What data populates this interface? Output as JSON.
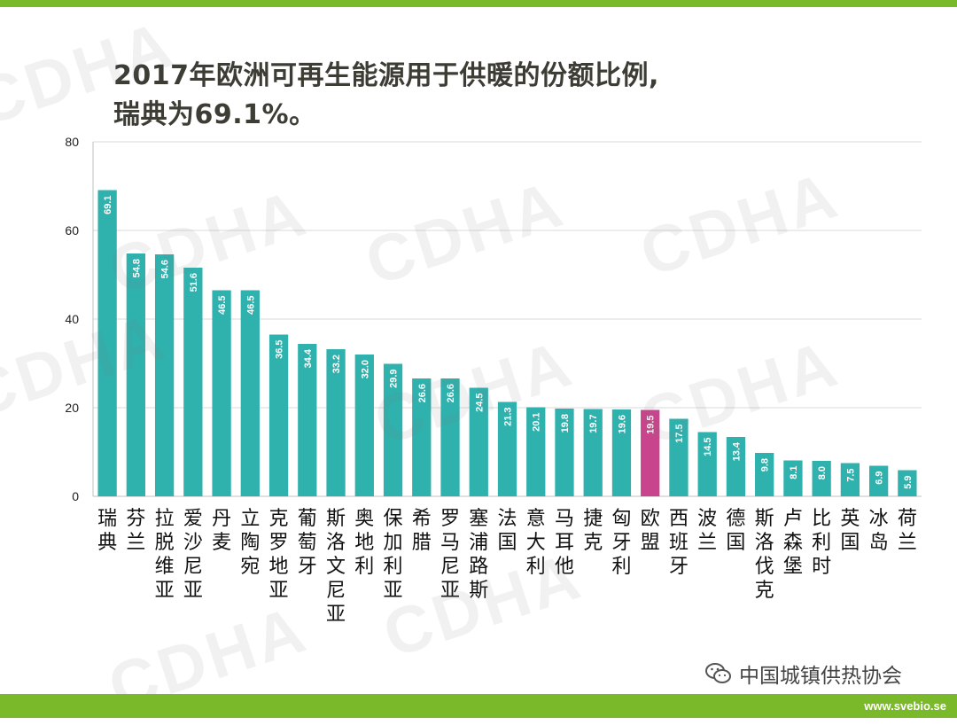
{
  "title": {
    "line1": "2017年欧洲可再生能源用于供暖的份额比例,",
    "line2": "瑞典为69.1%。"
  },
  "colors": {
    "brand_green": "#7ab929",
    "bar": "#2fb1ad",
    "highlight": "#c8448c",
    "grid": "#d9d9d9",
    "axis_text": "#222222"
  },
  "watermark": "CDHA",
  "wechat_label": "中国城镇供热协会",
  "footer_url": "www.svebio.se",
  "chart_data": {
    "type": "bar",
    "title": "2017年欧洲可再生能源用于供暖的份额比例,瑞典为69.1%。",
    "xlabel": "",
    "ylabel": "",
    "ylim": [
      0,
      80
    ],
    "yticks": [
      0,
      20,
      40,
      60,
      80
    ],
    "grid": true,
    "highlight_category": "欧盟",
    "categories": [
      "瑞典",
      "芬兰",
      "拉脱维亚",
      "爱沙尼亚",
      "丹麦",
      "立陶宛",
      "克罗地亚",
      "葡萄牙",
      "斯洛文尼亚",
      "奥地利",
      "保加利亚",
      "希腊",
      "罗马尼亚",
      "塞浦路斯",
      "法国",
      "意大利",
      "马耳他",
      "捷克",
      "匈牙利",
      "欧盟",
      "西班牙",
      "波兰",
      "德国",
      "斯洛伐克",
      "卢森堡",
      "比利时",
      "英国",
      "冰岛",
      "荷兰"
    ],
    "values": [
      69.1,
      54.8,
      54.6,
      51.6,
      46.5,
      46.5,
      36.5,
      34.4,
      33.2,
      32.0,
      29.9,
      26.6,
      26.6,
      24.5,
      21.3,
      20.1,
      19.8,
      19.7,
      19.6,
      19.5,
      17.5,
      14.5,
      13.4,
      9.8,
      8.1,
      8.0,
      7.5,
      6.9,
      5.9
    ],
    "value_labels": [
      "69.1",
      "54.8",
      "54.6",
      "51.6",
      "46.5",
      "46.5",
      "36.5",
      "34.4",
      "33.2",
      "32.0",
      "29.9",
      "26.6",
      "26.6",
      "24.5",
      "21.3",
      "20.1",
      "19.8",
      "19.7",
      "19.6",
      "19.5",
      "17.5",
      "14.5",
      "13.4",
      "9.8",
      "8.1",
      "8.0",
      "7.5",
      "6.9",
      "5.9"
    ]
  }
}
